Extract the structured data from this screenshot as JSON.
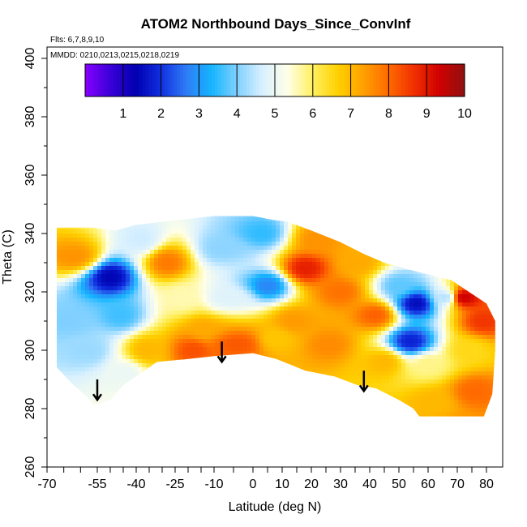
{
  "chart_data": {
    "type": "heatmap",
    "title": "ATOM2 Northbound Days_Since_ConvInf",
    "notes": {
      "flights": "Flts: 6,7,8,9,10",
      "dates": "MMDD: 0210,0213,0215,0218,0219"
    },
    "xlabel": "Latitude (deg N)",
    "ylabel": "Theta (C)",
    "xlim": [
      -72,
      85
    ],
    "ylim": [
      260,
      403
    ],
    "x_tick_labels": [
      "-70",
      "-55",
      "-40",
      "-25",
      "-10",
      "0",
      "10",
      "20",
      "30",
      "40",
      "50",
      "60",
      "70",
      "80"
    ],
    "x_ticks": [
      -70,
      -55,
      -40,
      -25,
      -10,
      0,
      10,
      20,
      30,
      40,
      50,
      60,
      70,
      80
    ],
    "y_ticks": [
      260,
      280,
      300,
      320,
      340,
      360,
      380,
      400
    ],
    "y_tick_labels": [
      "260",
      "280",
      "300",
      "320",
      "340",
      "360",
      "380",
      "400"
    ],
    "colorbar": {
      "range": [
        0,
        10
      ],
      "tick_labels": [
        "1",
        "2",
        "3",
        "4",
        "5",
        "6",
        "7",
        "8",
        "9",
        "10"
      ],
      "ticks": [
        1,
        2,
        3,
        4,
        5,
        6,
        7,
        8,
        9,
        10
      ],
      "colors": [
        "#8800ff",
        "#3a00d8",
        "#0000b0",
        "#1030e0",
        "#2f7cf5",
        "#15b5ff",
        "#80d0ff",
        "#d8f0ff",
        "#ffffe8",
        "#fff060",
        "#ffd000",
        "#ffa000",
        "#ff6a00",
        "#f03000",
        "#d00000",
        "#901010"
      ]
    },
    "domain": {
      "bottom_boundary": [
        [
          -56,
          281
        ],
        [
          -50,
          283
        ],
        [
          -45,
          288
        ],
        [
          -32,
          296
        ],
        [
          -20,
          297
        ],
        [
          -10,
          298
        ],
        [
          0,
          299
        ],
        [
          8,
          297
        ],
        [
          18,
          293
        ],
        [
          28,
          291
        ],
        [
          36,
          288
        ],
        [
          42,
          287
        ],
        [
          50,
          283
        ],
        [
          55,
          280
        ],
        [
          58,
          276
        ],
        [
          62,
          268
        ],
        [
          65,
          262
        ],
        [
          72,
          262
        ],
        [
          75,
          266
        ],
        [
          79,
          277
        ],
        [
          82,
          285
        ],
        [
          83,
          300
        ],
        [
          83,
          310
        ]
      ],
      "top_boundary": [
        [
          -69,
          342
        ],
        [
          -56,
          342
        ],
        [
          -48,
          341
        ],
        [
          -40,
          343
        ],
        [
          -30,
          344
        ],
        [
          -20,
          345
        ],
        [
          -10,
          346
        ],
        [
          0,
          346
        ],
        [
          5,
          345
        ],
        [
          12,
          344
        ],
        [
          20,
          341
        ],
        [
          30,
          337
        ],
        [
          38,
          333
        ],
        [
          45,
          330
        ],
        [
          52,
          328
        ],
        [
          60,
          326
        ],
        [
          68,
          324
        ],
        [
          74,
          320
        ],
        [
          80,
          316
        ],
        [
          83,
          310
        ]
      ],
      "left_edge": [
        [
          -69,
          342
        ],
        [
          -69,
          304
        ],
        [
          -67,
          294
        ],
        [
          -62,
          288
        ],
        [
          -58,
          284
        ],
        [
          -56,
          281
        ]
      ]
    },
    "features": [
      {
        "x": -58,
        "y": 300,
        "value": 4.2
      },
      {
        "x": -62,
        "y": 332,
        "value": 7.5
      },
      {
        "x": -64,
        "y": 310,
        "value": 4.0
      },
      {
        "x": -50,
        "y": 325,
        "value": 1.4
      },
      {
        "x": -46,
        "y": 312,
        "value": 3.6
      },
      {
        "x": -44,
        "y": 292,
        "value": 5.0
      },
      {
        "x": -36,
        "y": 300,
        "value": 7.0
      },
      {
        "x": -38,
        "y": 338,
        "value": 4.6
      },
      {
        "x": -28,
        "y": 330,
        "value": 7.8
      },
      {
        "x": -22,
        "y": 318,
        "value": 5.6
      },
      {
        "x": -18,
        "y": 300,
        "value": 8.3
      },
      {
        "x": -14,
        "y": 307,
        "value": 7.2
      },
      {
        "x": -8,
        "y": 335,
        "value": 4.1
      },
      {
        "x": -6,
        "y": 318,
        "value": 4.8
      },
      {
        "x": -4,
        "y": 302,
        "value": 8.2
      },
      {
        "x": 3,
        "y": 340,
        "value": 3.5
      },
      {
        "x": 5,
        "y": 322,
        "value": 2.8
      },
      {
        "x": 8,
        "y": 304,
        "value": 6.8
      },
      {
        "x": 14,
        "y": 310,
        "value": 7.4
      },
      {
        "x": 18,
        "y": 328,
        "value": 8.9
      },
      {
        "x": 22,
        "y": 338,
        "value": 7.5
      },
      {
        "x": 26,
        "y": 302,
        "value": 7.6
      },
      {
        "x": 30,
        "y": 320,
        "value": 7.9
      },
      {
        "x": 36,
        "y": 330,
        "value": 7.2
      },
      {
        "x": 42,
        "y": 312,
        "value": 8.1
      },
      {
        "x": 45,
        "y": 296,
        "value": 7.0
      },
      {
        "x": 50,
        "y": 322,
        "value": 3.8
      },
      {
        "x": 54,
        "y": 303,
        "value": 1.8
      },
      {
        "x": 56,
        "y": 316,
        "value": 1.5
      },
      {
        "x": 60,
        "y": 295,
        "value": 5.8
      },
      {
        "x": 62,
        "y": 282,
        "value": 7.0
      },
      {
        "x": 66,
        "y": 318,
        "value": 4.4
      },
      {
        "x": 70,
        "y": 272,
        "value": 7.5
      },
      {
        "x": 72,
        "y": 318,
        "value": 9.4
      },
      {
        "x": 74,
        "y": 300,
        "value": 6.5
      },
      {
        "x": 76,
        "y": 286,
        "value": 8.0
      },
      {
        "x": 79,
        "y": 310,
        "value": 8.6
      }
    ],
    "arrows": [
      {
        "x": -55,
        "y_from": 290,
        "y_to": 283
      },
      {
        "x": -8,
        "y_from": 303,
        "y_to": 296
      },
      {
        "x": 38,
        "y_from": 293,
        "y_to": 286
      }
    ],
    "grid": false,
    "legend": "colorbar-top-inside"
  }
}
